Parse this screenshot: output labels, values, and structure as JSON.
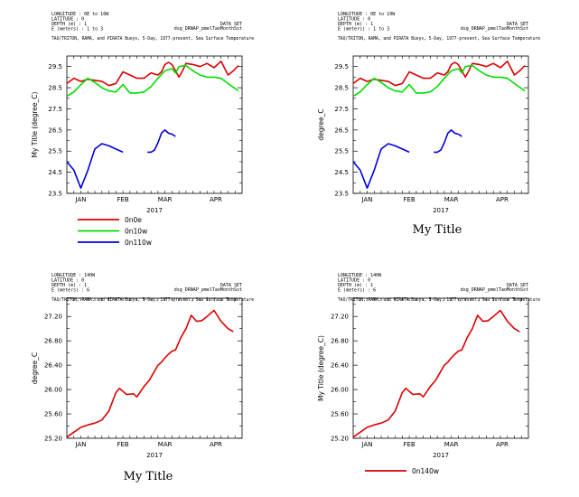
{
  "chart_data": [
    {
      "type": "line",
      "header": {
        "line1": "LONGITUDE : 0E to 10W",
        "line2": "LATITUDE : 0",
        "line3": "DEPTH (m) : 1",
        "line4": "E (meters) : 1 to 3",
        "dataset_label": "DATA SET",
        "dataset_name": "dsg_DRNAP_pmelTaoMonthSst",
        "description": "TAO/TRITON, RAMA, and PIRATA Buoys, 5-Day, 1977-present, Sea Surface Temperature"
      },
      "ylabel": "My Title (degree_C)",
      "xlabel": "2017",
      "ylim": [
        23.5,
        30.0
      ],
      "yticks": [
        "23.5",
        "24.5",
        "25.5",
        "26.5",
        "27.5",
        "28.5",
        "29.5"
      ],
      "xlim": [
        0,
        100
      ],
      "xticks": [
        {
          "label": "JAN",
          "x": 8
        },
        {
          "label": "FEB",
          "x": 32
        },
        {
          "label": "MAR",
          "x": 56
        },
        {
          "label": "APR",
          "x": 85
        }
      ],
      "title": "",
      "legend": [
        {
          "name": "0n0e",
          "color": "#dd0000"
        },
        {
          "name": "0n10w",
          "color": "#00dd00"
        },
        {
          "name": "0n110w",
          "color": "#0000dd"
        }
      ],
      "series": [
        {
          "name": "0n0e",
          "color": "#dd0000",
          "x": [
            0,
            4,
            8,
            12,
            16,
            20,
            24,
            28,
            32,
            36,
            40,
            44,
            48,
            52,
            54,
            56,
            58,
            60,
            62,
            64,
            66,
            68,
            72,
            76,
            80,
            84,
            88,
            92,
            95,
            98
          ],
          "y": [
            28.7,
            28.95,
            28.8,
            28.9,
            28.85,
            28.8,
            28.6,
            28.7,
            29.25,
            29.1,
            28.95,
            28.95,
            29.2,
            29.1,
            29.25,
            29.6,
            29.7,
            29.6,
            29.3,
            29.0,
            29.3,
            29.65,
            29.6,
            29.5,
            29.65,
            29.45,
            29.75,
            29.1,
            29.3,
            29.55
          ]
        },
        {
          "name": "0n10w",
          "color": "#00dd00",
          "x": [
            0,
            4,
            8,
            12,
            16,
            20,
            24,
            28,
            32,
            36,
            40,
            44,
            48,
            52,
            56,
            60,
            62,
            64,
            68,
            72,
            76,
            80,
            84,
            88,
            92,
            98
          ],
          "y": [
            28.1,
            28.3,
            28.65,
            28.95,
            28.75,
            28.5,
            28.35,
            28.3,
            28.65,
            28.25,
            28.25,
            28.3,
            28.55,
            28.95,
            29.3,
            29.4,
            29.2,
            29.5,
            29.55,
            29.3,
            29.1,
            29.0,
            29.0,
            28.95,
            28.7,
            28.35
          ]
        },
        {
          "name": "0n110w",
          "color": "#0000dd",
          "segments": [
            {
              "x": [
                0,
                4,
                8,
                12,
                16,
                20,
                24,
                28,
                32
              ],
              "y": [
                25.0,
                24.6,
                23.75,
                24.6,
                25.6,
                25.85,
                25.75,
                25.6,
                25.45
              ]
            },
            {
              "x": [
                46,
                48,
                50,
                52,
                54,
                56,
                58,
                60,
                62
              ],
              "y": [
                25.45,
                25.45,
                25.55,
                25.9,
                26.35,
                26.5,
                26.35,
                26.3,
                26.2
              ]
            }
          ]
        }
      ]
    },
    {
      "type": "line",
      "header": {
        "line1": "LONGITUDE : 0E to 10W",
        "line2": "LATITUDE : 0",
        "line3": "DEPTH (m) : 1",
        "line4": "E (meters) : 1 to 3",
        "dataset_label": "DATA SET",
        "dataset_name": "dsg_DRNAP_pmelTaoMonthSst",
        "description": "TAO/TRITON, RAMA, and PIRATA Buoys, 5-Day, 1977-present, Sea Surface Temperature"
      },
      "ylabel": "degree_C",
      "xlabel": "2017",
      "ylim": [
        23.5,
        30.0
      ],
      "yticks": [
        "23.5",
        "24.5",
        "25.5",
        "26.5",
        "27.5",
        "28.5",
        "29.5"
      ],
      "xlim": [
        0,
        100
      ],
      "xticks": [
        {
          "label": "JAN",
          "x": 8
        },
        {
          "label": "FEB",
          "x": 32
        },
        {
          "label": "MAR",
          "x": 56
        },
        {
          "label": "APR",
          "x": 85
        }
      ],
      "title": "My Title",
      "legend": [],
      "series": [
        {
          "name": "0n0e",
          "color": "#dd0000",
          "x": [
            0,
            4,
            8,
            12,
            16,
            20,
            24,
            28,
            32,
            36,
            40,
            44,
            48,
            52,
            54,
            56,
            58,
            60,
            62,
            64,
            66,
            68,
            72,
            76,
            80,
            84,
            88,
            92,
            95,
            98
          ],
          "y": [
            28.7,
            28.95,
            28.8,
            28.9,
            28.85,
            28.8,
            28.6,
            28.7,
            29.25,
            29.1,
            28.95,
            28.95,
            29.2,
            29.1,
            29.25,
            29.6,
            29.7,
            29.6,
            29.3,
            29.0,
            29.3,
            29.65,
            29.6,
            29.5,
            29.65,
            29.45,
            29.75,
            29.1,
            29.3,
            29.55
          ]
        },
        {
          "name": "0n10w",
          "color": "#00dd00",
          "x": [
            0,
            4,
            8,
            12,
            16,
            20,
            24,
            28,
            32,
            36,
            40,
            44,
            48,
            52,
            56,
            60,
            62,
            64,
            68,
            72,
            76,
            80,
            84,
            88,
            92,
            98
          ],
          "y": [
            28.1,
            28.3,
            28.65,
            28.95,
            28.75,
            28.5,
            28.35,
            28.3,
            28.65,
            28.25,
            28.25,
            28.3,
            28.55,
            28.95,
            29.3,
            29.4,
            29.2,
            29.5,
            29.55,
            29.3,
            29.1,
            29.0,
            29.0,
            28.95,
            28.7,
            28.35
          ]
        },
        {
          "name": "0n110w",
          "color": "#0000dd",
          "segments": [
            {
              "x": [
                0,
                4,
                8,
                12,
                16,
                20,
                24,
                28,
                32
              ],
              "y": [
                25.0,
                24.6,
                23.75,
                24.6,
                25.6,
                25.85,
                25.75,
                25.6,
                25.45
              ]
            },
            {
              "x": [
                46,
                48,
                50,
                52,
                54,
                56,
                58,
                60,
                62
              ],
              "y": [
                25.45,
                25.45,
                25.55,
                25.9,
                26.35,
                26.5,
                26.35,
                26.3,
                26.2
              ]
            }
          ]
        }
      ]
    },
    {
      "type": "line",
      "header": {
        "line1": "LONGITUDE : 140W",
        "line2": "LATITUDE : 0",
        "line3": "DEPTH (m) : 1",
        "line4": "E (meters) : 6",
        "dataset_label": "DATA SET",
        "dataset_name": "dsg_DRNAP_pmelTaoMonthSst",
        "description": "TAO/TRITON, RAMA, and PIRATA Buoys, 5-Day, 1977-present, Sea Surface Temperature"
      },
      "ylabel": "degree_C",
      "xlabel": "2017",
      "ylim": [
        25.2,
        27.5
      ],
      "yticks": [
        "25.20",
        "25.60",
        "26.00",
        "26.40",
        "26.80",
        "27.20"
      ],
      "xlim": [
        0,
        100
      ],
      "xticks": [
        {
          "label": "JAN",
          "x": 8
        },
        {
          "label": "FEB",
          "x": 32
        },
        {
          "label": "MAR",
          "x": 56
        },
        {
          "label": "APR",
          "x": 85
        }
      ],
      "title": "My Title",
      "legend": [],
      "series": [
        {
          "name": "",
          "color": "#dd0000",
          "x": [
            0,
            4,
            8,
            12,
            16,
            20,
            24,
            28,
            30,
            34,
            38,
            40,
            44,
            47,
            49,
            52,
            54,
            56,
            58,
            60,
            62,
            65,
            68,
            71,
            74,
            77,
            80,
            84,
            88,
            92,
            95
          ],
          "y": [
            25.22,
            25.3,
            25.38,
            25.42,
            25.45,
            25.5,
            25.65,
            25.95,
            26.02,
            25.92,
            25.93,
            25.88,
            26.05,
            26.15,
            26.25,
            26.4,
            26.45,
            26.52,
            26.58,
            26.63,
            26.65,
            26.85,
            27.0,
            27.22,
            27.12,
            27.13,
            27.2,
            27.3,
            27.12,
            27.0,
            26.95
          ]
        }
      ]
    },
    {
      "type": "line",
      "header": {
        "line1": "LONGITUDE : 140W",
        "line2": "LATITUDE : 0",
        "line3": "DEPTH (m) : 1",
        "line4": "E (meters) : 6",
        "dataset_label": "DATA SET",
        "dataset_name": "dsg_DRNAP_pmelTaoMonthSst",
        "description": "TAO/TRITON, RAMA, and PIRATA Buoys, 5-Day, 1977-present, Sea Surface Temperature"
      },
      "ylabel": "My Title (degree_C)",
      "xlabel": "2017",
      "ylim": [
        25.2,
        27.5
      ],
      "yticks": [
        "25.20",
        "25.60",
        "26.00",
        "26.40",
        "26.80",
        "27.20"
      ],
      "xlim": [
        0,
        100
      ],
      "xticks": [
        {
          "label": "JAN",
          "x": 8
        },
        {
          "label": "FEB",
          "x": 32
        },
        {
          "label": "MAR",
          "x": 56
        },
        {
          "label": "APR",
          "x": 85
        }
      ],
      "title": "",
      "legend": [
        {
          "name": "0n140w",
          "color": "#dd0000"
        }
      ],
      "series": [
        {
          "name": "0n140w",
          "color": "#dd0000",
          "x": [
            0,
            4,
            8,
            12,
            16,
            20,
            24,
            28,
            30,
            34,
            38,
            40,
            44,
            47,
            49,
            52,
            54,
            56,
            58,
            60,
            62,
            65,
            68,
            71,
            74,
            77,
            80,
            84,
            88,
            92,
            95
          ],
          "y": [
            25.22,
            25.3,
            25.38,
            25.42,
            25.45,
            25.5,
            25.65,
            25.95,
            26.02,
            25.92,
            25.93,
            25.88,
            26.05,
            26.15,
            26.25,
            26.4,
            26.45,
            26.52,
            26.58,
            26.63,
            26.65,
            26.85,
            27.0,
            27.22,
            27.12,
            27.13,
            27.2,
            27.3,
            27.12,
            27.0,
            26.95
          ]
        }
      ]
    }
  ]
}
